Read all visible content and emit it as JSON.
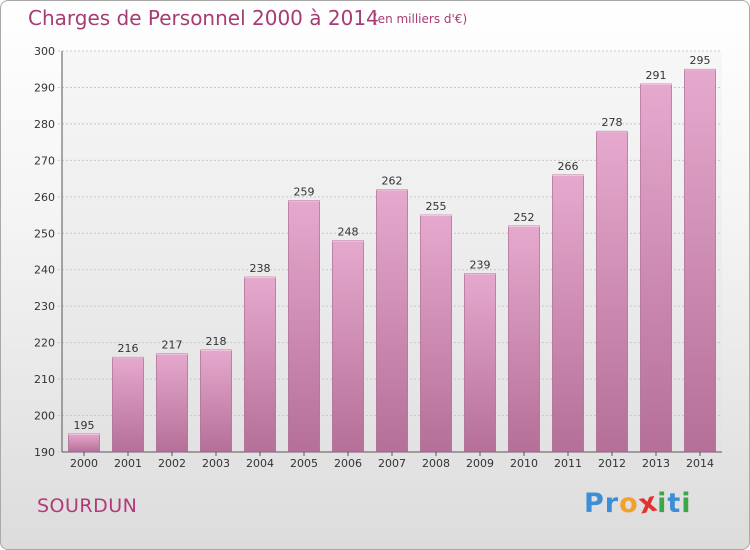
{
  "header": {
    "title": "Charges de Personnel 2000 à 2014",
    "subtitle": "(en milliers d'€)"
  },
  "footer": {
    "place": "SOURDUN",
    "logo_letters": [
      "P",
      "r",
      "o",
      "x",
      "i",
      "t",
      "i"
    ],
    "logo_colors": [
      "#3a8fd6",
      "#3a8fd6",
      "#f2a12c",
      "#e2322e",
      "#3aa84a",
      "#3a8fd6",
      "#3aa84a"
    ]
  },
  "colors": {
    "bar_top": "#e6a9ce",
    "bar_bottom": "#b56f98",
    "bar_edge": "#a05583",
    "grid": "#c9c9c9",
    "axis": "#555555",
    "text": "#333333"
  },
  "chart_data": {
    "type": "bar",
    "title": "Charges de Personnel 2000 à 2014",
    "subtitle": "(en milliers d'€)",
    "categories": [
      "2000",
      "2001",
      "2002",
      "2003",
      "2004",
      "2005",
      "2006",
      "2007",
      "2008",
      "2009",
      "2010",
      "2011",
      "2012",
      "2013",
      "2014"
    ],
    "values": [
      195,
      216,
      217,
      218,
      238,
      259,
      248,
      262,
      255,
      239,
      252,
      266,
      278,
      291,
      295
    ],
    "yticks": [
      190,
      200,
      210,
      220,
      230,
      240,
      250,
      260,
      270,
      280,
      290,
      300
    ],
    "ylim": [
      190,
      300
    ],
    "grid": true,
    "xlabel": "",
    "ylabel": ""
  }
}
